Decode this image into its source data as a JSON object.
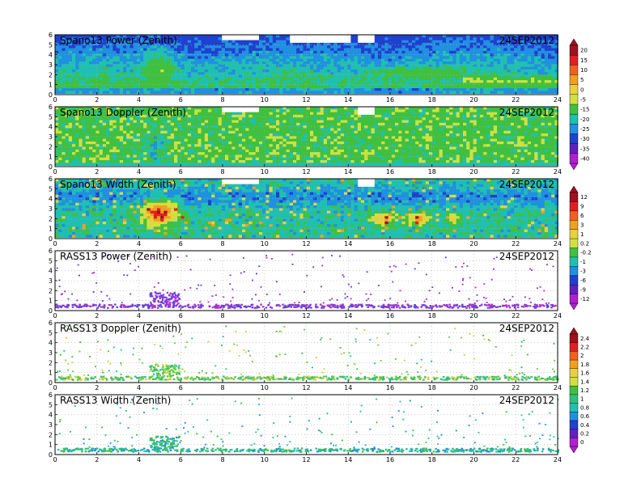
{
  "chart_data": [
    {
      "type": "heatmap",
      "title": "Spano13 Power (Zenith)",
      "date": "24SEP2012",
      "xlim": [
        0,
        24
      ],
      "ylim": [
        0,
        6
      ],
      "x_ticks": [
        "0",
        "2",
        "4",
        "6",
        "8",
        "10",
        "12",
        "14",
        "16",
        "18",
        "20",
        "22",
        "24"
      ],
      "y_ticks": [
        "0",
        "1",
        "2",
        "3",
        "4",
        "5",
        "6"
      ],
      "legend": "colorbar-right-shared-with-next-panel",
      "grid": true
    },
    {
      "type": "heatmap",
      "title": "Spano13 Doppler (Zenith)",
      "date": "24SEP2012",
      "xlim": [
        0,
        24
      ],
      "ylim": [
        0,
        6
      ],
      "x_ticks": [
        "0",
        "2",
        "4",
        "6",
        "8",
        "10",
        "12",
        "14",
        "16",
        "18",
        "20",
        "22",
        "24"
      ],
      "y_ticks": [
        "0",
        "1",
        "2",
        "3",
        "4",
        "5",
        "6"
      ],
      "colorbar": [
        "20",
        "15",
        "10",
        "5",
        "0",
        "-5",
        "-15",
        "-20",
        "-25",
        "-30",
        "-35",
        "-40"
      ],
      "colorbar_colors": [
        "#a01020",
        "#e02020",
        "#f06020",
        "#f0a020",
        "#e8d040",
        "#d0e040",
        "#40c040",
        "#20c0b0",
        "#2090e0",
        "#2040d0",
        "#6020c0",
        "#b020d0"
      ],
      "grid": true
    },
    {
      "type": "heatmap",
      "title": "Spano13 Width (Zenith)",
      "date": "24SEP2012",
      "xlim": [
        0,
        24
      ],
      "ylim": [
        0,
        6
      ],
      "x_ticks": [
        "0",
        "2",
        "4",
        "6",
        "8",
        "10",
        "12",
        "14",
        "16",
        "18",
        "20",
        "22",
        "24"
      ],
      "y_ticks": [
        "0",
        "1",
        "2",
        "3",
        "4",
        "5",
        "6"
      ],
      "legend": "colorbar-right-shared-with-next-panel",
      "grid": true
    },
    {
      "type": "heatmap",
      "title": "RASS13 Power (Zenith)",
      "date": "24SEP2012",
      "xlim": [
        0,
        24
      ],
      "ylim": [
        0,
        6
      ],
      "x_ticks": [
        "0",
        "2",
        "4",
        "6",
        "8",
        "10",
        "12",
        "14",
        "16",
        "18",
        "20",
        "22",
        "24"
      ],
      "y_ticks": [
        "0",
        "1",
        "2",
        "3",
        "4",
        "5",
        "6"
      ],
      "colorbar": [
        "12",
        "9",
        "6",
        "3",
        "1",
        "0.2",
        "-0.2",
        "-1",
        "-3",
        "-6",
        "-9",
        "-12"
      ],
      "colorbar_colors": [
        "#a01020",
        "#e02020",
        "#f06020",
        "#f0a020",
        "#e8d040",
        "#d0e040",
        "#40c040",
        "#20c0b0",
        "#2090e0",
        "#2040d0",
        "#6020c0",
        "#b020d0"
      ],
      "grid": true
    },
    {
      "type": "heatmap",
      "title": "RASS13 Doppler (Zenith)",
      "date": "24SEP2012",
      "xlim": [
        0,
        24
      ],
      "ylim": [
        0,
        6
      ],
      "x_ticks": [
        "0",
        "2",
        "4",
        "6",
        "8",
        "10",
        "12",
        "14",
        "16",
        "18",
        "20",
        "22",
        "24"
      ],
      "y_ticks": [
        "0",
        "1",
        "2",
        "3",
        "4",
        "5",
        "6"
      ],
      "legend": "colorbar-right-shared-with-next-panel",
      "grid": true
    },
    {
      "type": "heatmap",
      "title": "RASS13 Width (Zenith)",
      "date": "24SEP2012",
      "xlim": [
        0,
        24
      ],
      "ylim": [
        0,
        6
      ],
      "x_ticks": [
        "0",
        "2",
        "4",
        "6",
        "8",
        "10",
        "12",
        "14",
        "16",
        "18",
        "20",
        "22",
        "24"
      ],
      "y_ticks": [
        "0",
        "1",
        "2",
        "3",
        "4",
        "5",
        "6"
      ],
      "colorbar": [
        "2.4",
        "2.2",
        "2",
        "1.8",
        "1.6",
        "1.4",
        "1.2",
        "1",
        "0.8",
        "0.6",
        "0.4",
        "0.2",
        "0"
      ],
      "colorbar_colors": [
        "#a01020",
        "#e02020",
        "#f06020",
        "#f0a020",
        "#e8d040",
        "#d0e040",
        "#40c040",
        "#30c080",
        "#20c0b0",
        "#2090e0",
        "#2040d0",
        "#6020c0",
        "#b020d0"
      ],
      "grid": true
    }
  ]
}
